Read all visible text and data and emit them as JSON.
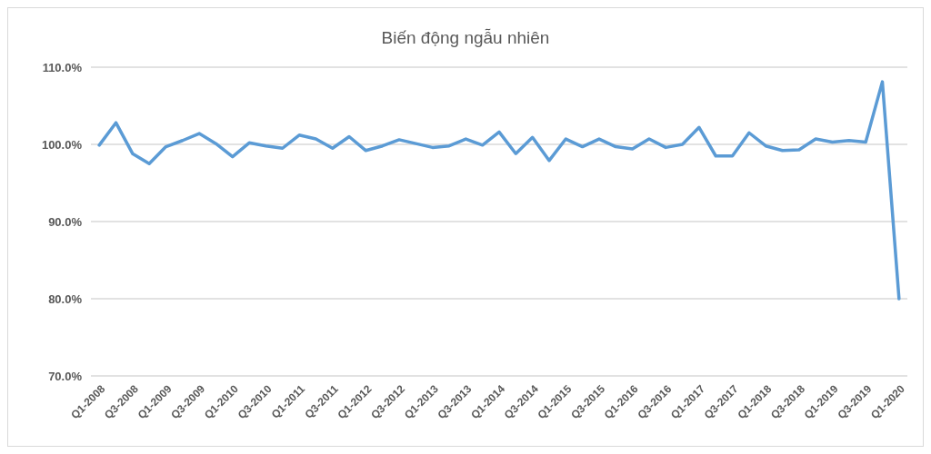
{
  "chart_data": {
    "type": "line",
    "title": "Biến động ngẫu nhiên",
    "categories": [
      "Q1-2008",
      null,
      "Q3-2008",
      null,
      "Q1-2009",
      null,
      "Q3-2009",
      null,
      "Q1-2010",
      null,
      "Q3-2010",
      null,
      "Q1-2011",
      null,
      "Q3-2011",
      null,
      "Q1-2012",
      null,
      "Q3-2012",
      null,
      "Q1-2013",
      null,
      "Q3-2013",
      null,
      "Q1-2014",
      null,
      "Q3-2014",
      null,
      "Q1-2015",
      null,
      "Q3-2015",
      null,
      "Q1-2016",
      null,
      "Q3-2016",
      null,
      "Q1-2017",
      null,
      "Q3-2017",
      null,
      "Q1-2018",
      null,
      "Q3-2018",
      null,
      "Q1-2019",
      null,
      "Q3-2019",
      null,
      "Q1-2020"
    ],
    "series": [
      {
        "color": "#5b9bd5",
        "values": [
          99.9,
          102.8,
          98.8,
          97.5,
          99.7,
          100.5,
          101.4,
          100.1,
          98.4,
          100.2,
          99.8,
          99.5,
          101.2,
          100.7,
          99.5,
          101.0,
          99.2,
          99.8,
          100.6,
          100.1,
          99.6,
          99.8,
          100.7,
          99.9,
          101.6,
          98.8,
          100.9,
          97.9,
          100.7,
          99.7,
          100.7,
          99.7,
          99.4,
          100.7,
          99.6,
          100.0,
          102.2,
          98.5,
          98.5,
          101.5,
          99.8,
          99.2,
          99.3,
          100.7,
          100.3,
          100.5,
          100.3,
          108.1,
          80.0
        ]
      }
    ],
    "ylim": [
      70,
      110
    ],
    "yticks": [
      {
        "value": 70,
        "label": "70.0%"
      },
      {
        "value": 80,
        "label": "80.0%"
      },
      {
        "value": 90,
        "label": "90.0%"
      },
      {
        "value": 100,
        "label": "100.0%"
      },
      {
        "value": 110,
        "label": "110.0%"
      }
    ],
    "grid": "y",
    "marker": "none",
    "line_style": "solid"
  }
}
